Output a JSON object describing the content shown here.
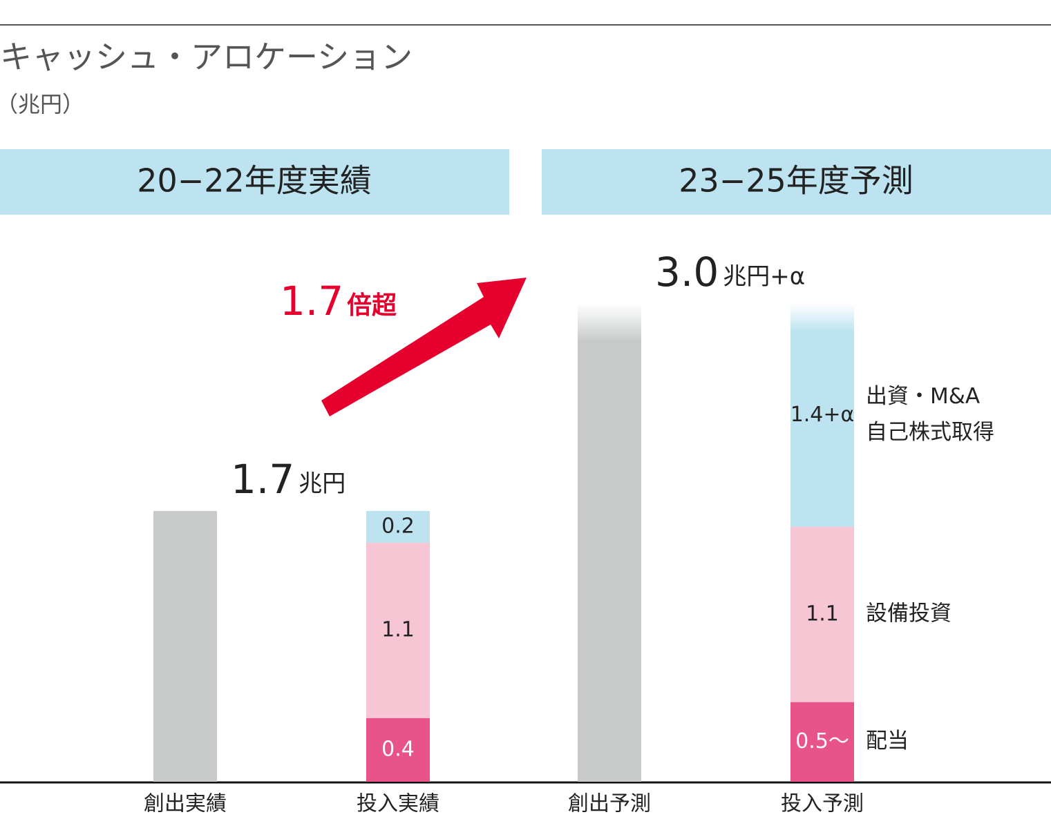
{
  "chart_data": {
    "type": "stacked-bar",
    "title": "キャッシュ・アロケーション",
    "subtitle": "（兆円）",
    "groups": [
      "20−22年度実績",
      "23−25年度予測"
    ],
    "categories": [
      "創出実績",
      "投入実績",
      "創出予測",
      "投入予測"
    ],
    "series": [
      {
        "name": [
          "創出"
        ],
        "color": "#c8c9c9",
        "values": [
          1.7,
          null,
          3.0,
          null
        ],
        "value_labels": [
          "1.7",
          null,
          "3.0",
          null
        ],
        "unit_labels": [
          "兆円",
          null,
          "兆円+α",
          null
        ]
      },
      {
        "name": [
          "配当"
        ],
        "color": "#e8538a",
        "values": [
          null,
          0.4,
          null,
          0.5
        ],
        "value_labels": [
          null,
          "0.4",
          null,
          "0.5～"
        ]
      },
      {
        "name": [
          "設備投資"
        ],
        "color": "#f6c6d4",
        "values": [
          null,
          1.1,
          null,
          1.1
        ],
        "value_labels": [
          null,
          "1.1",
          null,
          "1.1"
        ]
      },
      {
        "name": [
          "出資・M&A",
          "自己株式取得"
        ],
        "color": "#bde3f0",
        "values": [
          null,
          0.2,
          null,
          1.4
        ],
        "value_labels": [
          null,
          "0.2",
          null,
          "1.4+α"
        ]
      }
    ],
    "growth_label": "1.7",
    "growth_unit": "倍超",
    "ylim": [
      0,
      3.0
    ]
  }
}
